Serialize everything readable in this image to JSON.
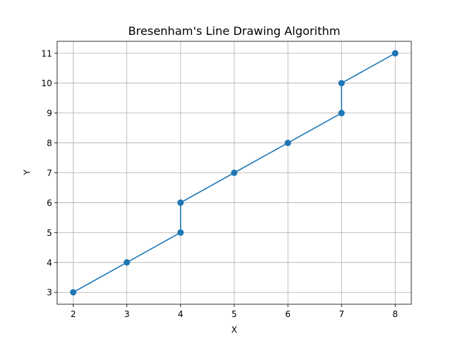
{
  "chart_data": {
    "type": "line",
    "title": "Bresenham's Line Drawing Algorithm",
    "xlabel": "X",
    "ylabel": "Y",
    "xlim": [
      1.7,
      8.3
    ],
    "ylim": [
      2.6,
      11.4
    ],
    "xticks": [
      2,
      3,
      4,
      5,
      6,
      7,
      8
    ],
    "yticks": [
      3,
      4,
      5,
      6,
      7,
      8,
      9,
      10,
      11
    ],
    "grid": true,
    "marker": "circle",
    "series": [
      {
        "color": "#1f77b4",
        "x": [
          2,
          3,
          4,
          4,
          5,
          6,
          7,
          7,
          8
        ],
        "y": [
          3,
          4,
          5,
          6,
          7,
          8,
          9,
          10,
          11
        ]
      }
    ]
  }
}
